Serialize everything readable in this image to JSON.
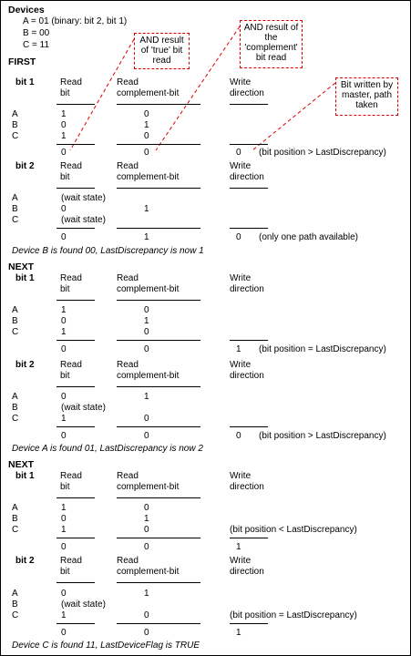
{
  "devices": {
    "heading": "Devices",
    "lines": [
      "A = 01 (binary: bit 2, bit 1)",
      "B = 00",
      "C = 11"
    ]
  },
  "callouts": {
    "and_true": "AND result of 'true' bit read",
    "and_complement": "AND result of the 'complement' bit read",
    "written": "Bit written by master, path taken"
  },
  "labels": {
    "read_bit_1": "Read",
    "read_bit_2": "bit",
    "read_comp_1": "Read",
    "read_comp_2": "complement-bit",
    "write_1": "Write",
    "write_2": "direction",
    "A": "A",
    "B": "B",
    "C": "C"
  },
  "sections": [
    {
      "title": "FIRST",
      "blocks": [
        {
          "bit": "bit 1",
          "a": [
            "1",
            "0"
          ],
          "b": [
            "0",
            "1"
          ],
          "c": [
            "1",
            "0"
          ],
          "and": [
            "0",
            "0"
          ],
          "write": "0",
          "note": "(bit position > LastDiscrepancy)"
        },
        {
          "bit": "bit 2",
          "a": [
            "(wait state)",
            ""
          ],
          "b": [
            "0",
            "1"
          ],
          "c": [
            "(wait state)",
            ""
          ],
          "and": [
            "0",
            "1"
          ],
          "write": "0",
          "note": "(only one path available)"
        }
      ],
      "summary": "Device B is found 00, LastDiscrepancy is now 1"
    },
    {
      "title": "NEXT",
      "blocks": [
        {
          "bit": "bit 1",
          "a": [
            "1",
            "0"
          ],
          "b": [
            "0",
            "1"
          ],
          "c": [
            "1",
            "0"
          ],
          "and": [
            "0",
            "0"
          ],
          "write": "1",
          "note": "(bit position = LastDiscrepancy)"
        },
        {
          "bit": "bit 2",
          "a": [
            "0",
            "1"
          ],
          "b": [
            "(wait state)",
            ""
          ],
          "c": [
            "1",
            "0"
          ],
          "and": [
            "0",
            "0"
          ],
          "write": "0",
          "note": "(bit position > LastDiscrepancy)"
        }
      ],
      "summary": "Device A is found 01, LastDiscrepancy is now 2"
    },
    {
      "title": "NEXT",
      "blocks": [
        {
          "bit": "bit 1",
          "a": [
            "1",
            "0"
          ],
          "b": [
            "0",
            "1"
          ],
          "c": [
            "1",
            "0"
          ],
          "and": [
            "0",
            "0"
          ],
          "write": "1",
          "note": "(bit position < LastDiscrepancy)"
        },
        {
          "bit": "bit 2",
          "a": [
            "0",
            "1"
          ],
          "b": [
            "(wait state)",
            ""
          ],
          "c": [
            "1",
            "0"
          ],
          "and": [
            "0",
            "0"
          ],
          "write": "1",
          "note": "(bit position = LastDiscrepancy)"
        }
      ],
      "summary": "Device C is found 11, LastDeviceFlag is TRUE"
    }
  ]
}
